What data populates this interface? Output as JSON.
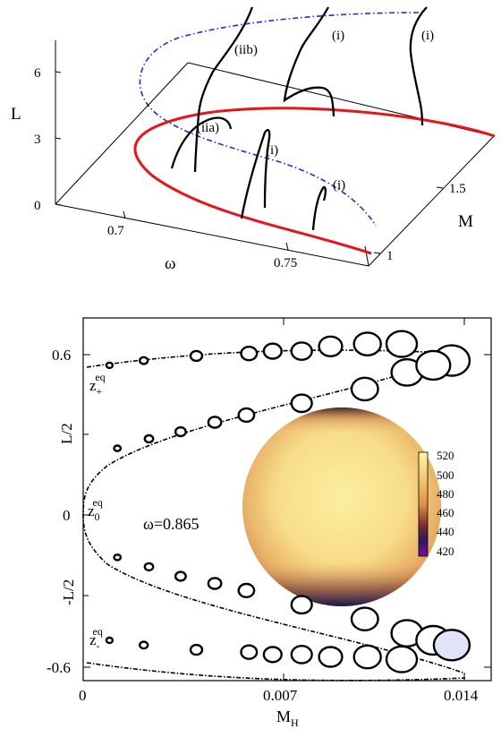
{
  "chart_data": [
    {
      "type": "line",
      "axes": {
        "x": {
          "label": "ω",
          "ticks": [
            "0.7",
            "0.75"
          ]
        },
        "y": {
          "label": "M",
          "ticks": [
            "1",
            "1.5"
          ]
        },
        "z": {
          "label": "L",
          "ticks": [
            "0",
            "3",
            "6"
          ]
        }
      },
      "annotations": [
        "(iib)",
        "(i)",
        "(i)",
        "(iia)",
        "(i)",
        "(i)"
      ],
      "colors": {
        "base_curve": "#e8141a",
        "projection": "#1a2fd6",
        "solution_branches": "#000000"
      }
    },
    {
      "type": "scatter",
      "xlabel": "M",
      "xlabel_sub": "H",
      "ylabel": "L/2",
      "x_ticks": [
        "0",
        "0.007",
        "0.014"
      ],
      "y_ticks": [
        "0.6",
        "L/2",
        "0",
        "-L/2",
        "-0.6"
      ],
      "xlim": [
        0,
        0.0155
      ],
      "ylim": [
        -0.75,
        0.78
      ],
      "annotation": "ω=0.865",
      "curve_labels": [
        {
          "base": "z",
          "sub": "+",
          "sup": "eq"
        },
        {
          "base": "z",
          "sub": "0",
          "sup": "eq"
        },
        {
          "base": "z",
          "sub": "-",
          "sup": "eq"
        }
      ],
      "circles": {
        "top": [
          [
            0.001,
            0.58
          ],
          [
            0.0023,
            0.6
          ],
          [
            0.0043,
            0.62
          ],
          [
            0.0063,
            0.63
          ],
          [
            0.0072,
            0.64
          ],
          [
            0.0083,
            0.64
          ],
          [
            0.0094,
            0.66
          ],
          [
            0.0108,
            0.67
          ],
          [
            0.0121,
            0.67
          ],
          [
            0.014,
            0.6
          ]
        ],
        "upper": [
          [
            0.0013,
            0.23
          ],
          [
            0.0025,
            0.27
          ],
          [
            0.0037,
            0.3
          ],
          [
            0.005,
            0.34
          ],
          [
            0.0062,
            0.37
          ],
          [
            0.0083,
            0.42
          ],
          [
            0.0107,
            0.48
          ],
          [
            0.0123,
            0.55
          ],
          [
            0.0133,
            0.58
          ]
        ],
        "lower": [
          [
            0.0013,
            -0.23
          ],
          [
            0.0025,
            -0.27
          ],
          [
            0.0037,
            -0.31
          ],
          [
            0.005,
            -0.34
          ],
          [
            0.0062,
            -0.37
          ],
          [
            0.0083,
            -0.43
          ],
          [
            0.0107,
            -0.49
          ],
          [
            0.0123,
            -0.55
          ],
          [
            0.0133,
            -0.58
          ]
        ],
        "bottom": [
          [
            0.001,
            -0.58
          ],
          [
            0.0023,
            -0.6
          ],
          [
            0.0043,
            -0.62
          ],
          [
            0.0063,
            -0.63
          ],
          [
            0.0072,
            -0.64
          ],
          [
            0.0083,
            -0.64
          ],
          [
            0.0094,
            -0.65
          ],
          [
            0.0108,
            -0.65
          ],
          [
            0.0121,
            -0.66
          ],
          [
            0.014,
            -0.6
          ]
        ]
      },
      "highlighted_circle": [
        0.014,
        -0.6
      ],
      "colorbar": {
        "ticks": [
          "520",
          "500",
          "480",
          "460",
          "440",
          "420"
        ]
      }
    }
  ]
}
